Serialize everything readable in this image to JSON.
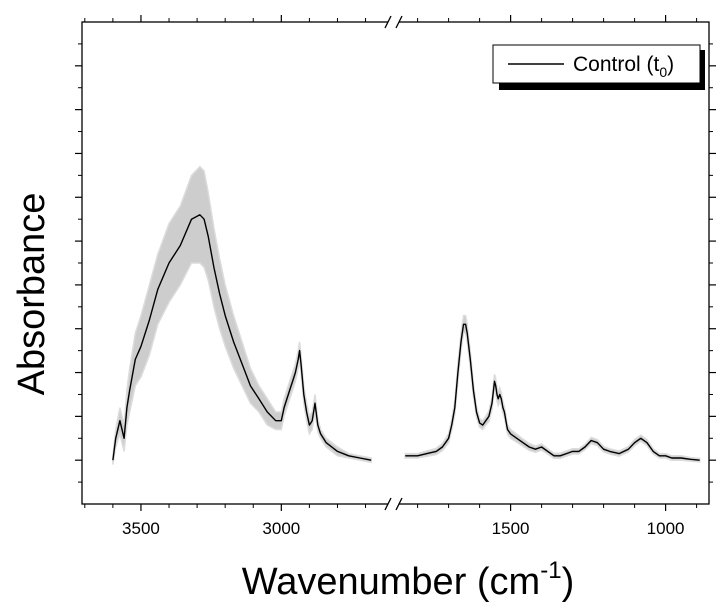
{
  "chart_data": {
    "type": "line",
    "xlabel": "Wavenumber (cm",
    "xlabel_sup": "-1",
    "xlabel_close": ")",
    "ylabel": "Absorbance",
    "x_axis_break": true,
    "x_reversed": true,
    "y_tick_labels_shown": false,
    "legend": {
      "position": "top-right",
      "label": "Control (t",
      "label_sub": "0",
      "label_close": ")"
    },
    "panels": [
      {
        "name": "high",
        "xlim": [
          3710,
          2620
        ],
        "ticks": [
          3500,
          3000
        ],
        "tick_labels": [
          "3500",
          "3000"
        ]
      },
      {
        "name": "low",
        "xlim": [
          1860,
          860
        ],
        "ticks": [
          1500,
          1000
        ],
        "tick_labels": [
          "1500",
          "1000"
        ]
      }
    ],
    "ylim": [
      -0.1,
      1.0
    ],
    "series": [
      {
        "label": "Control (t0)",
        "color": "#000000",
        "band_color": "#c8c8c8",
        "segments": [
          {
            "x": [
              3600,
              3590,
              3575,
              3560,
              3550,
              3540,
              3520,
              3500,
              3470,
              3440,
              3400,
              3360,
              3320,
              3290,
              3275,
              3260,
              3240,
              3220,
              3200,
              3170,
              3140,
              3110,
              3080,
              3050,
              3020,
              3000,
              2990,
              2970,
              2960,
              2950,
              2940,
              2935,
              2930,
              2920,
              2910,
              2900,
              2890,
              2880,
              2870,
              2860,
              2850,
              2840,
              2800,
              2760,
              2720,
              2680
            ],
            "y": [
              0.0,
              0.05,
              0.09,
              0.05,
              0.12,
              0.16,
              0.23,
              0.26,
              0.32,
              0.39,
              0.45,
              0.49,
              0.55,
              0.56,
              0.55,
              0.51,
              0.44,
              0.38,
              0.33,
              0.27,
              0.22,
              0.17,
              0.14,
              0.11,
              0.09,
              0.09,
              0.12,
              0.16,
              0.18,
              0.2,
              0.23,
              0.25,
              0.22,
              0.15,
              0.11,
              0.08,
              0.09,
              0.13,
              0.08,
              0.06,
              0.05,
              0.04,
              0.02,
              0.01,
              0.005,
              0.0
            ],
            "err": [
              0.01,
              0.02,
              0.03,
              0.03,
              0.04,
              0.05,
              0.06,
              0.07,
              0.08,
              0.08,
              0.09,
              0.09,
              0.1,
              0.11,
              0.11,
              0.1,
              0.09,
              0.08,
              0.07,
              0.06,
              0.05,
              0.04,
              0.03,
              0.03,
              0.02,
              0.02,
              0.02,
              0.02,
              0.02,
              0.02,
              0.02,
              0.02,
              0.02,
              0.02,
              0.02,
              0.02,
              0.02,
              0.02,
              0.015,
              0.01,
              0.01,
              0.01,
              0.01,
              0.005,
              0.005,
              0.005
            ]
          },
          {
            "x": [
              1840,
              1800,
              1770,
              1740,
              1720,
              1700,
              1690,
              1680,
              1670,
              1660,
              1652,
              1645,
              1640,
              1630,
              1620,
              1610,
              1600,
              1590,
              1580,
              1570,
              1560,
              1552,
              1548,
              1544,
              1540,
              1535,
              1530,
              1525,
              1520,
              1515,
              1510,
              1500,
              1480,
              1460,
              1440,
              1420,
              1400,
              1380,
              1360,
              1340,
              1320,
              1300,
              1280,
              1260,
              1240,
              1220,
              1200,
              1180,
              1150,
              1120,
              1100,
              1080,
              1060,
              1040,
              1020,
              1000,
              980,
              950,
              920,
              890
            ],
            "y": [
              0.01,
              0.01,
              0.015,
              0.02,
              0.03,
              0.05,
              0.08,
              0.12,
              0.2,
              0.27,
              0.31,
              0.31,
              0.29,
              0.23,
              0.16,
              0.11,
              0.085,
              0.08,
              0.09,
              0.1,
              0.13,
              0.18,
              0.17,
              0.15,
              0.14,
              0.15,
              0.14,
              0.12,
              0.11,
              0.09,
              0.07,
              0.06,
              0.05,
              0.04,
              0.03,
              0.025,
              0.03,
              0.02,
              0.01,
              0.01,
              0.015,
              0.02,
              0.02,
              0.03,
              0.045,
              0.04,
              0.025,
              0.02,
              0.015,
              0.025,
              0.04,
              0.05,
              0.04,
              0.02,
              0.01,
              0.01,
              0.005,
              0.005,
              0.002,
              0.0
            ],
            "err": [
              0.005,
              0.005,
              0.006,
              0.007,
              0.008,
              0.01,
              0.012,
              0.015,
              0.02,
              0.02,
              0.02,
              0.02,
              0.02,
              0.018,
              0.015,
              0.012,
              0.01,
              0.01,
              0.01,
              0.012,
              0.014,
              0.016,
              0.016,
              0.015,
              0.015,
              0.015,
              0.014,
              0.013,
              0.012,
              0.011,
              0.01,
              0.01,
              0.009,
              0.008,
              0.008,
              0.007,
              0.007,
              0.006,
              0.006,
              0.006,
              0.006,
              0.006,
              0.006,
              0.006,
              0.007,
              0.007,
              0.006,
              0.006,
              0.006,
              0.006,
              0.007,
              0.007,
              0.007,
              0.006,
              0.005,
              0.005,
              0.005,
              0.005,
              0.004,
              0.004
            ]
          }
        ]
      }
    ]
  }
}
